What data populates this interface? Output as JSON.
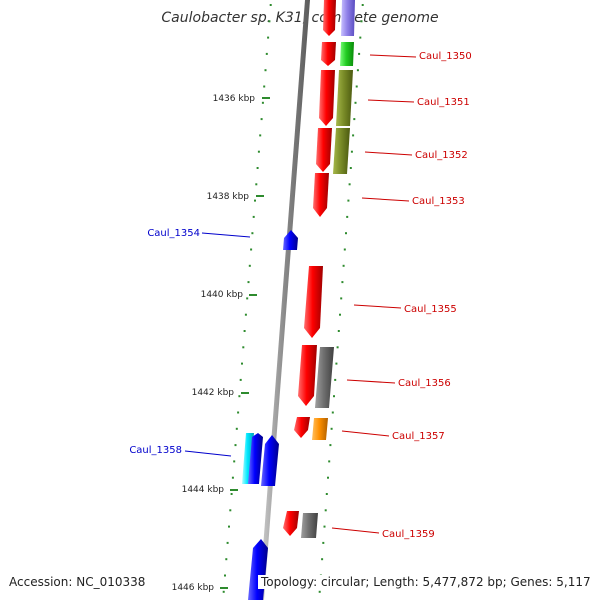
{
  "title": "Caulobacter sp. K31, complete genome",
  "footer": {
    "accession": "Accession: NC_010338",
    "summary": "Topology: circular; Length: 5,477,872 bp; Genes: 5,117"
  },
  "colors": {
    "backbone": "#888888",
    "tick": "#2e8b2e",
    "right_label": "#cc0000",
    "left_label": "#0000cc"
  },
  "scale_ticks": [
    {
      "label": "1436 kbp"
    },
    {
      "label": "1438 kbp"
    },
    {
      "label": "1440 kbp"
    },
    {
      "label": "1442 kbp"
    },
    {
      "label": "1444 kbp"
    },
    {
      "label": "1446 kbp"
    }
  ],
  "gene_labels": [
    {
      "text": "Caul_1350",
      "side": "right"
    },
    {
      "text": "Caul_1351",
      "side": "right"
    },
    {
      "text": "Caul_1352",
      "side": "right"
    },
    {
      "text": "Caul_1353",
      "side": "right"
    },
    {
      "text": "Caul_1354",
      "side": "left"
    },
    {
      "text": "Caul_1355",
      "side": "right"
    },
    {
      "text": "Caul_1356",
      "side": "right"
    },
    {
      "text": "Caul_1357",
      "side": "right"
    },
    {
      "text": "Caul_1358",
      "side": "left"
    },
    {
      "text": "Caul_1359",
      "side": "right"
    }
  ]
}
